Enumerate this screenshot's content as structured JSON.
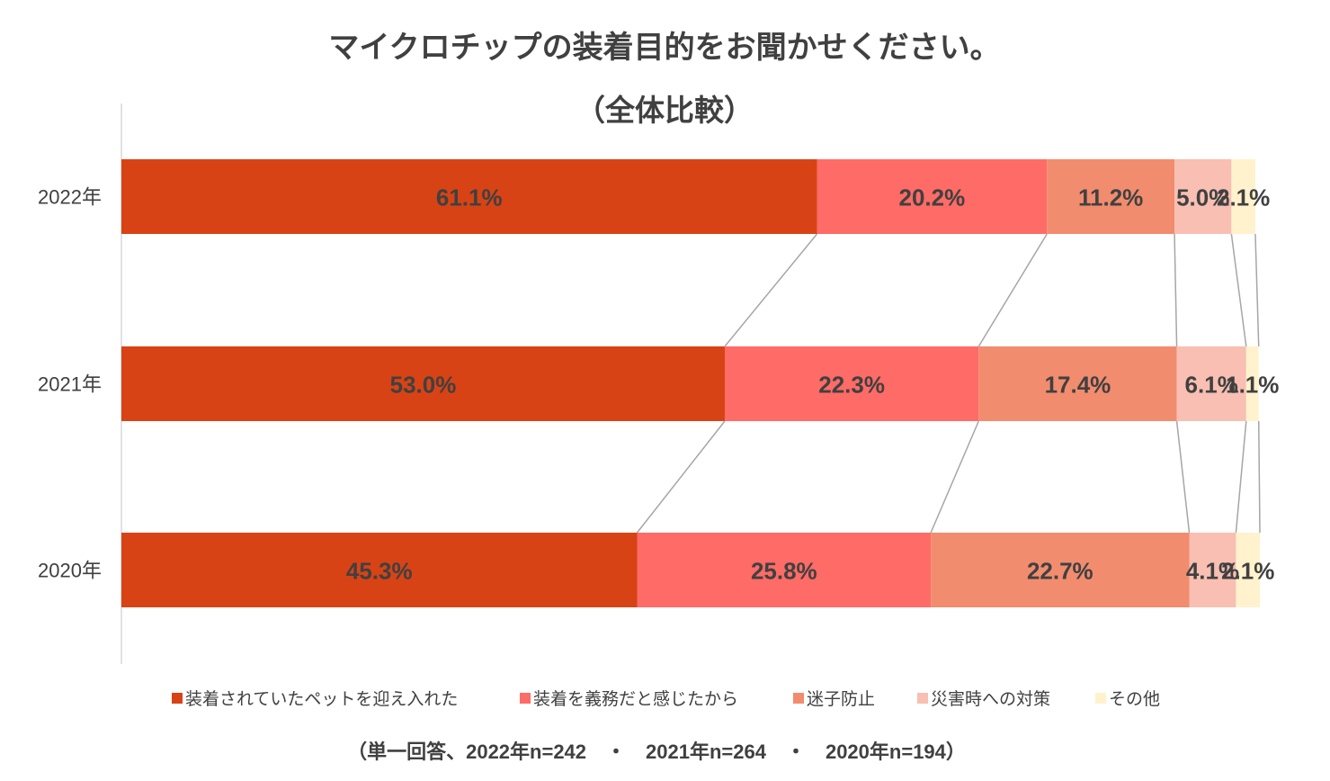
{
  "chart_data": {
    "type": "bar",
    "stacked": true,
    "orientation": "horizontal",
    "title": "マイクロチップの装着目的をお聞かせください。",
    "subtitle": "（全体比較）",
    "categories": [
      "2022年",
      "2021年",
      "2020年"
    ],
    "series": [
      {
        "name": "装着されていたペットを迎え入れた",
        "color": "#D84315",
        "values": [
          61.1,
          53.0,
          45.3
        ],
        "labels": [
          "61.1%",
          "53.0%",
          "45.3%"
        ]
      },
      {
        "name": "装着を義務だと感じたから",
        "color": "#FF6B66",
        "values": [
          20.2,
          22.3,
          25.8
        ],
        "labels": [
          "20.2%",
          "22.3%",
          "25.8%"
        ]
      },
      {
        "name": "迷子防止",
        "color": "#F28C6E",
        "values": [
          11.2,
          17.4,
          22.7
        ],
        "labels": [
          "11.2%",
          "17.4%",
          "22.7%"
        ]
      },
      {
        "name": "災害時への対策",
        "color": "#F8BFB2",
        "values": [
          5.0,
          6.1,
          4.1
        ],
        "labels": [
          "5.0%",
          "6.1%",
          "4.1%"
        ]
      },
      {
        "name": "その他",
        "color": "#FFF2CC",
        "values": [
          2.1,
          1.1,
          2.1
        ],
        "labels": [
          "2.1%",
          "1.1%",
          "2.1%"
        ]
      }
    ],
    "xlim": [
      0,
      100
    ],
    "series_lines": true,
    "legend": "bottom",
    "note": "（単一回答、2022年n=242　・　2021年n=264　・　2020年n=194）"
  }
}
